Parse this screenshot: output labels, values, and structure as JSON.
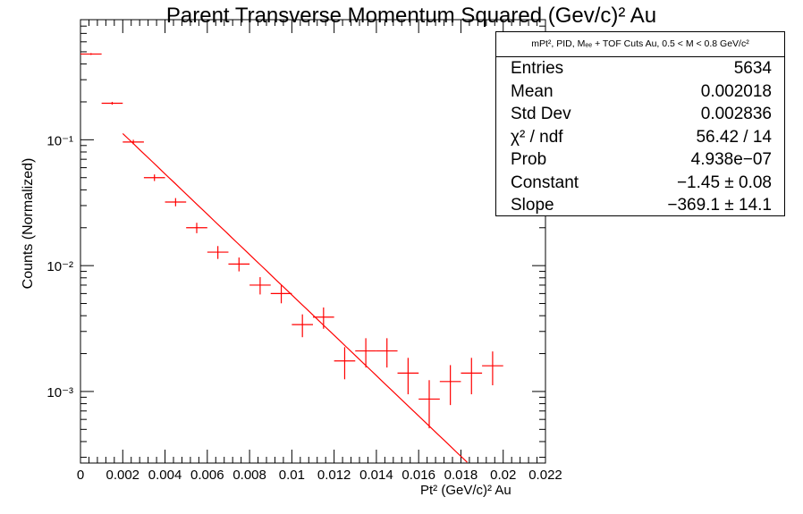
{
  "title": "Parent Transverse Momentum Squared (Gev/c)² Au",
  "xlabel": "Pt² (GeV/c)² Au",
  "ylabel": "Counts (Normalized)",
  "colors": {
    "data": "#ff0000",
    "fit": "#ff0000",
    "axis": "#000000"
  },
  "stats": {
    "header": "mPt², PID, Mₑₑ + TOF Cuts Au, 0.5 < M < 0.8 GeV/c²",
    "rows": [
      {
        "label": "Entries",
        "value": "5634"
      },
      {
        "label": "Mean",
        "value": "0.002018"
      },
      {
        "label": "Std Dev",
        "value": "0.002836"
      },
      {
        "label": "χ² / ndf",
        "value": "56.42 / 14"
      },
      {
        "label": "Prob",
        "value": "4.938e−07"
      },
      {
        "label": "Constant",
        "value": "−1.45 ± 0.08"
      },
      {
        "label": "Slope",
        "value": "−369.1 ± 14.1"
      }
    ]
  },
  "chart_data": {
    "type": "scatter",
    "xlabel": "Pt² (GeV/c)² Au",
    "ylabel": "Counts (Normalized)",
    "xlim": [
      0,
      0.022
    ],
    "ylim": [
      0.00027,
      0.9
    ],
    "log_y": true,
    "grid": false,
    "x_tick_labels": [
      "0",
      "0.002",
      "0.004",
      "0.006",
      "0.008",
      "0.01",
      "0.012",
      "0.014",
      "0.016",
      "0.018",
      "0.02",
      "0.022"
    ],
    "y_tick_labels": [
      {
        "value": 0.1,
        "label": "10⁻¹"
      },
      {
        "value": 0.01,
        "label": "10⁻²"
      },
      {
        "value": 0.001,
        "label": "10⁻³"
      }
    ],
    "bin_half_width": 0.0005,
    "points": [
      {
        "x": 0.0005,
        "y": 0.48,
        "err": 0.008
      },
      {
        "x": 0.0015,
        "y": 0.195,
        "err": 0.005
      },
      {
        "x": 0.0025,
        "y": 0.096,
        "err": 0.004
      },
      {
        "x": 0.0035,
        "y": 0.05,
        "err": 0.003
      },
      {
        "x": 0.0045,
        "y": 0.032,
        "err": 0.0024
      },
      {
        "x": 0.0055,
        "y": 0.02,
        "err": 0.0019
      },
      {
        "x": 0.0065,
        "y": 0.0128,
        "err": 0.0015
      },
      {
        "x": 0.0075,
        "y": 0.0103,
        "err": 0.0013
      },
      {
        "x": 0.0085,
        "y": 0.007,
        "err": 0.0011
      },
      {
        "x": 0.0095,
        "y": 0.006,
        "err": 0.00098
      },
      {
        "x": 0.0105,
        "y": 0.0034,
        "err": 0.0007
      },
      {
        "x": 0.0115,
        "y": 0.0039,
        "err": 0.00075
      },
      {
        "x": 0.0125,
        "y": 0.00175,
        "err": 0.0005
      },
      {
        "x": 0.0135,
        "y": 0.0021,
        "err": 0.00055
      },
      {
        "x": 0.0145,
        "y": 0.0021,
        "err": 0.00055
      },
      {
        "x": 0.0155,
        "y": 0.0014,
        "err": 0.00045
      },
      {
        "x": 0.0165,
        "y": 0.00087,
        "err": 0.00036
      },
      {
        "x": 0.0175,
        "y": 0.0012,
        "err": 0.00042
      },
      {
        "x": 0.0185,
        "y": 0.0014,
        "err": 0.00045
      },
      {
        "x": 0.0195,
        "y": 0.0016,
        "err": 0.00048
      }
    ],
    "fit": {
      "function": "expo",
      "constant": -1.45,
      "slope": -369.1,
      "x_range": [
        0.002,
        0.0183
      ]
    }
  }
}
